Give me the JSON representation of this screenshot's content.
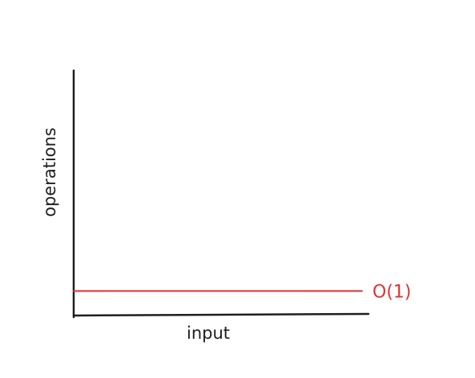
{
  "chart_data": {
    "type": "line",
    "title": "",
    "xlabel": "input",
    "ylabel": "operations",
    "x": [
      0,
      1
    ],
    "xlim": [
      0,
      1
    ],
    "ylim": [
      0,
      1
    ],
    "grid": false,
    "series": [
      {
        "name": "O(1)",
        "values": [
          0.1,
          0.1
        ],
        "color": "#e03131"
      }
    ]
  },
  "colors": {
    "axis": "#1e1e1e",
    "series": "#e03131"
  }
}
